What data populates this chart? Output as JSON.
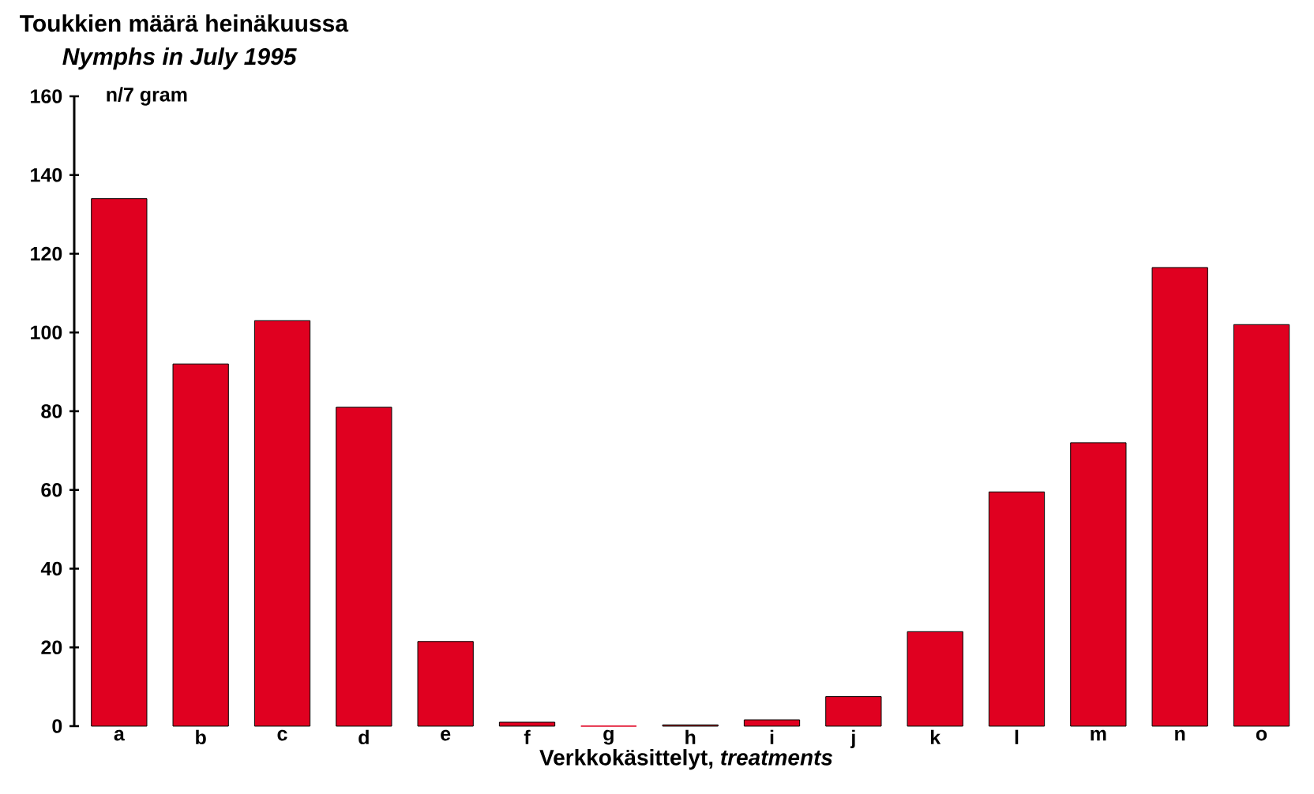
{
  "chart_data": {
    "type": "bar",
    "title": "Toukkien määrä heinäkuussa",
    "subtitle": "*Nymphs in July 1995*",
    "ylabel": "n/7 gram",
    "xlabel": "Verkkokäsittelyt, *treatments*",
    "categories": [
      "a",
      "b",
      "c",
      "d",
      "e",
      "f",
      "g",
      "h",
      "i",
      "j",
      "k",
      "l",
      "m",
      "n",
      "o"
    ],
    "values": [
      134,
      92,
      103,
      81,
      21.5,
      1,
      0,
      0.3,
      1.6,
      7.5,
      24,
      59.5,
      72,
      116.5,
      102
    ],
    "color": "#e00020",
    "ylim": [
      0,
      160
    ],
    "yticks": [
      0,
      20,
      40,
      60,
      80,
      100,
      120,
      140,
      160
    ]
  }
}
